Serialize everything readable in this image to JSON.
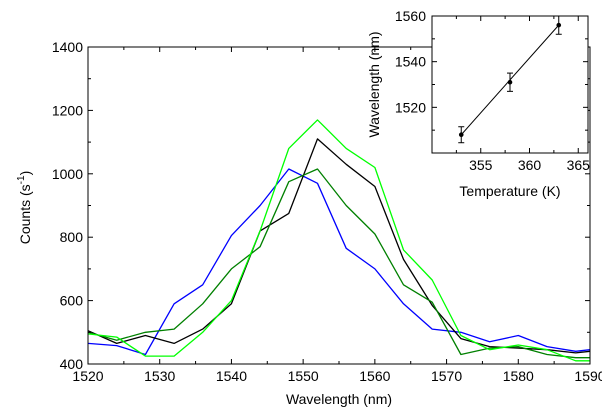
{
  "chart_data": [
    {
      "type": "line",
      "title": "",
      "xlabel": "Wavelength (nm)",
      "ylabel_main": "Counts (s",
      "ylabel_sup": "-1",
      "ylabel_tail": ")",
      "xlim": [
        1520,
        1590
      ],
      "ylim": [
        400,
        1400
      ],
      "xticks": [
        1520,
        1530,
        1540,
        1550,
        1560,
        1570,
        1580,
        1590
      ],
      "yticks": [
        400,
        600,
        800,
        1000,
        1200,
        1400
      ],
      "grid": false,
      "series": [
        {
          "color": "#0000ff",
          "x": [
            1520,
            1524,
            1528,
            1532,
            1536,
            1540,
            1544,
            1548,
            1552,
            1556,
            1560,
            1564,
            1568,
            1572,
            1576,
            1580,
            1584,
            1588,
            1590
          ],
          "y": [
            465,
            458,
            430,
            590,
            650,
            805,
            900,
            1015,
            970,
            765,
            700,
            590,
            510,
            500,
            470,
            490,
            455,
            440,
            445
          ]
        },
        {
          "color": "#000000",
          "x": [
            1520,
            1524,
            1528,
            1532,
            1536,
            1540,
            1544,
            1548,
            1552,
            1556,
            1560,
            1564,
            1568,
            1572,
            1576,
            1580,
            1584,
            1588,
            1590
          ],
          "y": [
            505,
            465,
            490,
            465,
            510,
            590,
            820,
            875,
            1110,
            1030,
            960,
            730,
            585,
            480,
            455,
            450,
            445,
            435,
            440
          ]
        },
        {
          "color": "#008000",
          "x": [
            1520,
            1524,
            1528,
            1532,
            1536,
            1540,
            1544,
            1548,
            1552,
            1556,
            1560,
            1564,
            1568,
            1572,
            1576,
            1580,
            1584,
            1588,
            1590
          ],
          "y": [
            500,
            475,
            500,
            510,
            590,
            700,
            770,
            975,
            1015,
            900,
            810,
            650,
            595,
            430,
            450,
            455,
            430,
            420,
            420
          ]
        },
        {
          "color": "#00ff00",
          "x": [
            1520,
            1524,
            1528,
            1532,
            1536,
            1540,
            1544,
            1548,
            1552,
            1556,
            1560,
            1564,
            1568,
            1572,
            1576,
            1580,
            1584,
            1588,
            1590
          ],
          "y": [
            495,
            485,
            425,
            425,
            500,
            600,
            820,
            1080,
            1170,
            1080,
            1020,
            760,
            665,
            490,
            445,
            460,
            445,
            410,
            410
          ]
        }
      ]
    },
    {
      "type": "scatter",
      "title": "",
      "xlabel": "Temperature (K)",
      "ylabel": "Wavelength (nm)",
      "xlim": [
        350,
        366
      ],
      "ylim": [
        1500,
        1560
      ],
      "xticks": [
        355,
        360,
        365
      ],
      "yticks": [
        1520,
        1540,
        1560
      ],
      "grid": false,
      "points": [
        {
          "x": 353,
          "y": 1508,
          "err": 3.5
        },
        {
          "x": 358,
          "y": 1531,
          "err": 4
        },
        {
          "x": 363,
          "y": 1556,
          "err": 4
        }
      ],
      "fit_line": {
        "x": [
          353,
          363
        ],
        "y": [
          1508,
          1556
        ]
      }
    }
  ]
}
